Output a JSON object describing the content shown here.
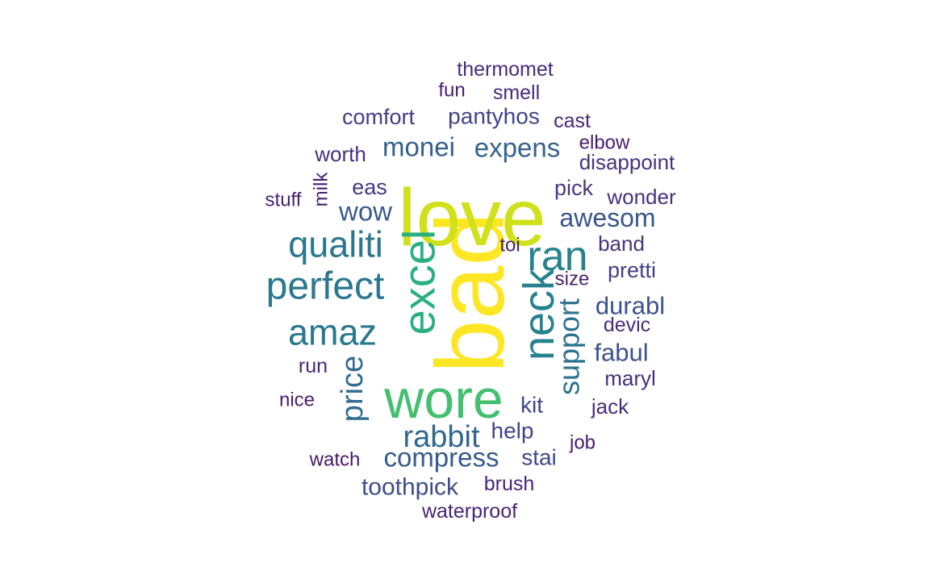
{
  "words": [
    {
      "text": "bad",
      "weight": 100,
      "color": "#fde725"
    },
    {
      "text": "love",
      "weight": 90,
      "color": "#d0e11c"
    },
    {
      "text": "wore",
      "weight": 75,
      "color": "#44bf70"
    },
    {
      "text": "excel",
      "weight": 65,
      "color": "#2ab07f"
    },
    {
      "text": "neck",
      "weight": 55,
      "color": "#26828e"
    },
    {
      "text": "ran",
      "weight": 50,
      "color": "#26828e"
    },
    {
      "text": "perfect",
      "weight": 48,
      "color": "#2a788e"
    },
    {
      "text": "qualiti",
      "weight": 45,
      "color": "#2a788e"
    },
    {
      "text": "amaz",
      "weight": 45,
      "color": "#2a788e"
    },
    {
      "text": "support",
      "weight": 40,
      "color": "#2c728e"
    },
    {
      "text": "price",
      "weight": 36,
      "color": "#2f6c8e"
    },
    {
      "text": "rabbit",
      "weight": 36,
      "color": "#31688e"
    },
    {
      "text": "expens",
      "weight": 33,
      "color": "#33638d"
    },
    {
      "text": "monei",
      "weight": 33,
      "color": "#355f8d"
    },
    {
      "text": "compress",
      "weight": 33,
      "color": "#375b8d"
    },
    {
      "text": "wow",
      "weight": 32,
      "color": "#375b8d"
    },
    {
      "text": "awesom",
      "weight": 32,
      "color": "#39568c"
    },
    {
      "text": "durabl",
      "weight": 31,
      "color": "#3b528b"
    },
    {
      "text": "fabul",
      "weight": 31,
      "color": "#3b528b"
    },
    {
      "text": "toothpick",
      "weight": 30,
      "color": "#3e4c8a"
    },
    {
      "text": "pantyhos",
      "weight": 28,
      "color": "#404688"
    },
    {
      "text": "stai",
      "weight": 28,
      "color": "#404688"
    },
    {
      "text": "help",
      "weight": 28,
      "color": "#414487"
    },
    {
      "text": "kit",
      "weight": 28,
      "color": "#414487"
    },
    {
      "text": "pretti",
      "weight": 27,
      "color": "#423f85"
    },
    {
      "text": "comfort",
      "weight": 27,
      "color": "#433e85"
    },
    {
      "text": "eas",
      "weight": 27,
      "color": "#443a83"
    },
    {
      "text": "pick",
      "weight": 27,
      "color": "#443a83"
    },
    {
      "text": "wonder",
      "weight": 26,
      "color": "#45337d"
    },
    {
      "text": "disappoint",
      "weight": 26,
      "color": "#45337d"
    },
    {
      "text": "band",
      "weight": 26,
      "color": "#46337e"
    },
    {
      "text": "worth",
      "weight": 26,
      "color": "#472f7d"
    },
    {
      "text": "maryl",
      "weight": 26,
      "color": "#472f7d"
    },
    {
      "text": "jack",
      "weight": 26,
      "color": "#472c7a"
    },
    {
      "text": "devic",
      "weight": 25,
      "color": "#472d7b"
    },
    {
      "text": "smell",
      "weight": 25,
      "color": "#472a7a"
    },
    {
      "text": "thermomet",
      "weight": 25,
      "color": "#472a7a"
    },
    {
      "text": "cast",
      "weight": 25,
      "color": "#482878"
    },
    {
      "text": "run",
      "weight": 25,
      "color": "#482878"
    },
    {
      "text": "brush",
      "weight": 25,
      "color": "#482576"
    },
    {
      "text": "waterproof",
      "weight": 25,
      "color": "#482475"
    },
    {
      "text": "size",
      "weight": 24,
      "color": "#482173"
    },
    {
      "text": "toi",
      "weight": 24,
      "color": "#482173"
    },
    {
      "text": "milk",
      "weight": 24,
      "color": "#481f70"
    },
    {
      "text": "stuff",
      "weight": 24,
      "color": "#481f70"
    },
    {
      "text": "fun",
      "weight": 24,
      "color": "#481c6e"
    },
    {
      "text": "elbow",
      "weight": 24,
      "color": "#481c6e"
    },
    {
      "text": "nice",
      "weight": 24,
      "color": "#481a6c"
    },
    {
      "text": "watch",
      "weight": 24,
      "color": "#48186a"
    },
    {
      "text": "job",
      "weight": 24,
      "color": "#48186a"
    }
  ]
}
